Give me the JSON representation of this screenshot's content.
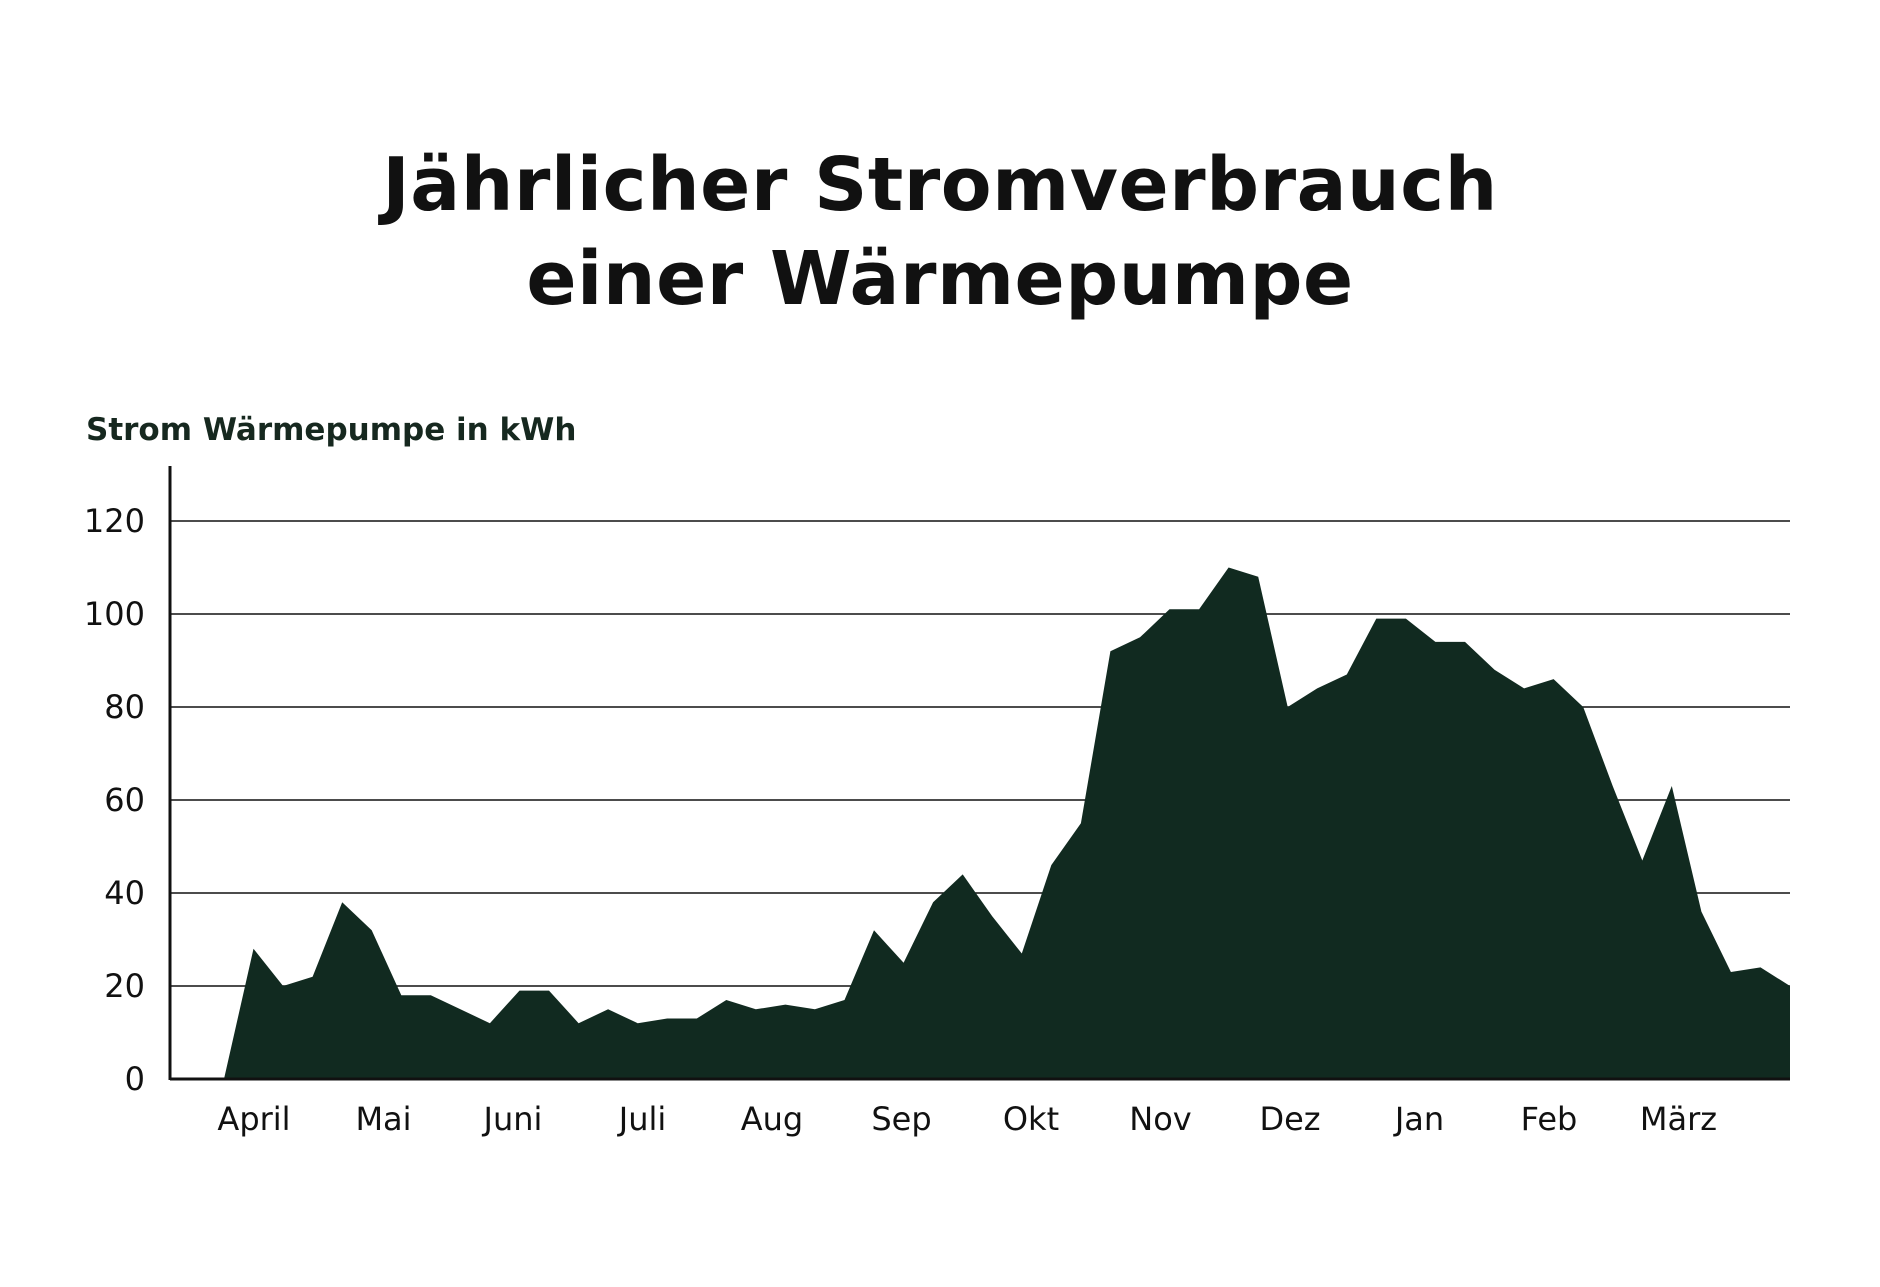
{
  "title": {
    "line1": "Jährlicher Stromverbrauch",
    "line2": "einer Wärmepumpe"
  },
  "colors": {
    "area": "#112a20",
    "text": "#111111",
    "ylabel": "#16281f",
    "grid": "#111111"
  },
  "chart_data": {
    "type": "area",
    "ylabel": "Strom Wärmepumpe in kWh",
    "xlabel": "",
    "ylim": [
      0,
      130
    ],
    "yticks": [
      0,
      20,
      40,
      60,
      80,
      100,
      120
    ],
    "grid": true,
    "months": [
      "April",
      "Mai",
      "Juni",
      "Juli",
      "Aug",
      "Sep",
      "Okt",
      "Nov",
      "Dez",
      "Jan",
      "Feb",
      "März"
    ],
    "series": [
      {
        "values": [
          0,
          28,
          20,
          22,
          38,
          32,
          18,
          18,
          15,
          12,
          19,
          19,
          12,
          15,
          12,
          13,
          13,
          17,
          15,
          16,
          15,
          17,
          32,
          25,
          38,
          44,
          35,
          27,
          46,
          55,
          92,
          95,
          101,
          101,
          110,
          108,
          80,
          84,
          87,
          99,
          99,
          94,
          94,
          88,
          84,
          86,
          80,
          63,
          47,
          63,
          36,
          23,
          24,
          20
        ]
      }
    ]
  }
}
